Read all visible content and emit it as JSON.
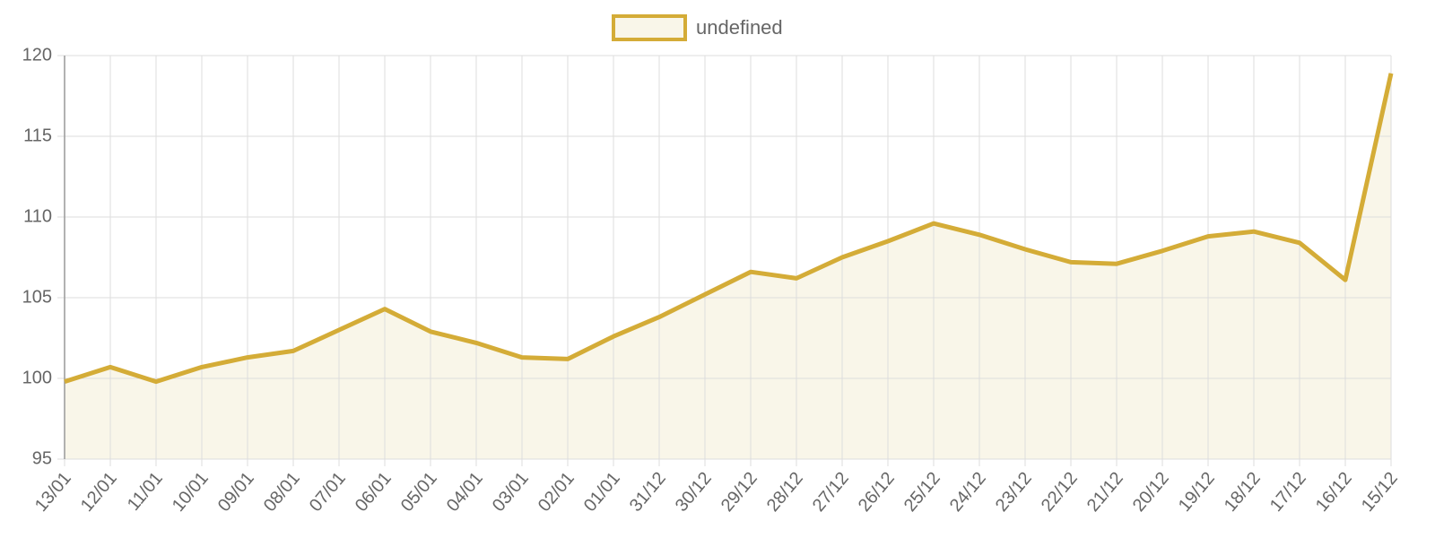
{
  "chart_data": {
    "type": "line",
    "categories": [
      "13/01",
      "12/01",
      "11/01",
      "10/01",
      "09/01",
      "08/01",
      "07/01",
      "06/01",
      "05/01",
      "04/01",
      "03/01",
      "02/01",
      "01/01",
      "31/12",
      "30/12",
      "29/12",
      "28/12",
      "27/12",
      "26/12",
      "25/12",
      "24/12",
      "23/12",
      "22/12",
      "21/12",
      "20/12",
      "19/12",
      "18/12",
      "17/12",
      "16/12",
      "15/12"
    ],
    "series": [
      {
        "name": "undefined",
        "color": "#d4ac37",
        "fill": "#f9f6e9",
        "values": [
          99.8,
          100.7,
          99.8,
          100.7,
          101.3,
          101.7,
          103.0,
          104.3,
          102.9,
          102.2,
          101.3,
          101.2,
          102.6,
          103.8,
          105.2,
          106.6,
          106.2,
          107.5,
          108.5,
          109.6,
          108.9,
          108.0,
          107.2,
          107.1,
          107.9,
          108.8,
          109.1,
          108.4,
          106.1,
          118.9
        ]
      }
    ],
    "ylim": [
      95,
      120
    ],
    "yticks": [
      95,
      100,
      105,
      110,
      115,
      120
    ],
    "grid": true
  }
}
